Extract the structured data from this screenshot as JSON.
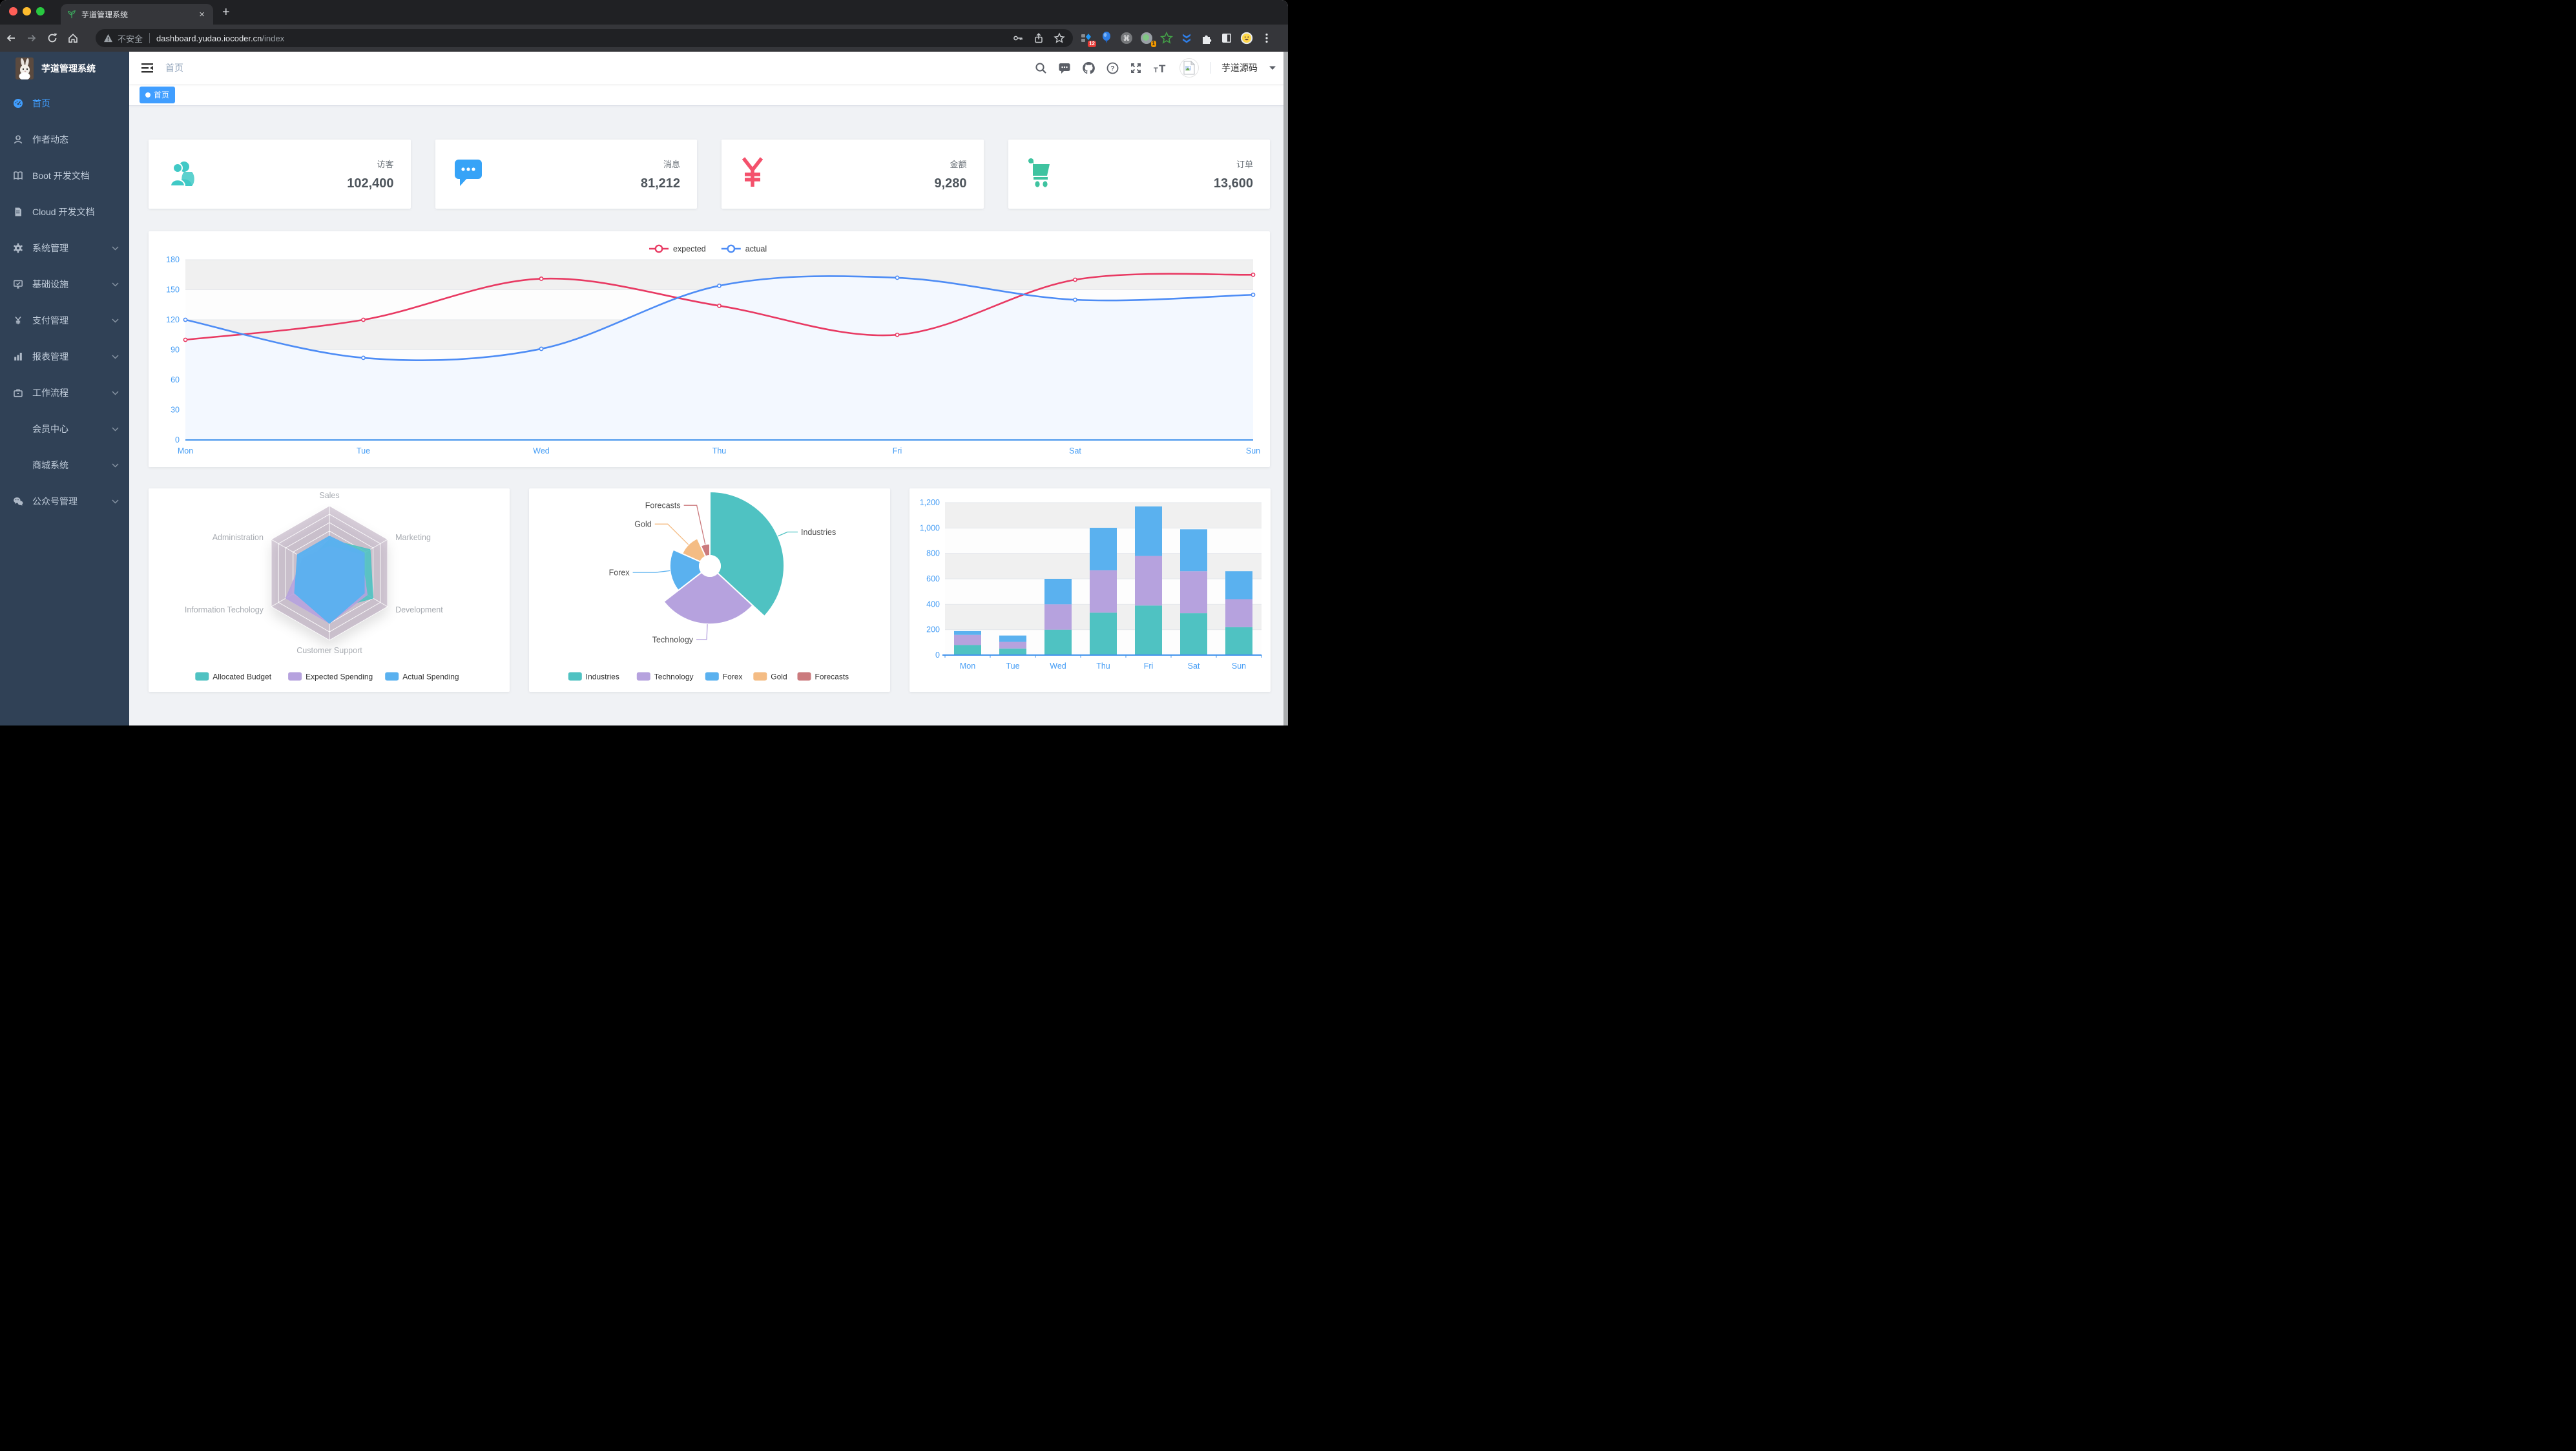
{
  "browser": {
    "tab_title": "芋道管理系统",
    "tab_close": "×",
    "security_label": "不安全",
    "url_host": "dashboard.yudao.iocoder.cn",
    "url_path": "/index",
    "ext_badge_scripts": "12",
    "ext_badge_circle": "1"
  },
  "sidebar": {
    "title": "芋道管理系统",
    "items": [
      {
        "label": "首页",
        "icon": "dashboard-icon",
        "active": true,
        "arrow": false,
        "indent": false
      },
      {
        "label": "作者动态",
        "icon": "people-icon",
        "active": false,
        "arrow": false,
        "indent": false
      },
      {
        "label": "Boot 开发文档",
        "icon": "book-icon",
        "active": false,
        "arrow": false,
        "indent": false
      },
      {
        "label": "Cloud 开发文档",
        "icon": "document-icon",
        "active": false,
        "arrow": false,
        "indent": false
      },
      {
        "label": "系统管理",
        "icon": "gear-icon",
        "active": false,
        "arrow": true,
        "indent": false
      },
      {
        "label": "基础设施",
        "icon": "monitor-icon",
        "active": false,
        "arrow": true,
        "indent": false
      },
      {
        "label": "支付管理",
        "icon": "yen-icon",
        "active": false,
        "arrow": true,
        "indent": false
      },
      {
        "label": "报表管理",
        "icon": "barchart-icon",
        "active": false,
        "arrow": true,
        "indent": false
      },
      {
        "label": "工作流程",
        "icon": "briefcase-icon",
        "active": false,
        "arrow": true,
        "indent": false
      },
      {
        "label": "会员中心",
        "icon": null,
        "active": false,
        "arrow": true,
        "indent": true
      },
      {
        "label": "商城系统",
        "icon": null,
        "active": false,
        "arrow": true,
        "indent": true
      },
      {
        "label": "公众号管理",
        "icon": "wechat-icon",
        "active": false,
        "arrow": true,
        "indent": false
      }
    ]
  },
  "header": {
    "breadcrumb": "首页",
    "user": "芋道源码"
  },
  "tags": [
    {
      "label": "首页",
      "active": true
    }
  ],
  "stats": [
    {
      "label": "访客",
      "value": "102,400",
      "icon": "people-group-icon",
      "color": "#40c9c6"
    },
    {
      "label": "消息",
      "value": "81,212",
      "icon": "message-icon",
      "color": "#36a3f7"
    },
    {
      "label": "金额",
      "value": "9,280",
      "icon": "money-icon",
      "color": "#f4516c"
    },
    {
      "label": "订单",
      "value": "13,600",
      "icon": "cart-icon",
      "color": "#3fc3a0"
    }
  ],
  "chart_data": {
    "line": {
      "type": "line",
      "x": [
        "Mon",
        "Tue",
        "Wed",
        "Thu",
        "Fri",
        "Sat",
        "Sun"
      ],
      "ylim": [
        0,
        180
      ],
      "yticks": [
        0,
        30,
        60,
        90,
        120,
        150,
        180
      ],
      "grid": true,
      "legend_position": "top",
      "series": [
        {
          "name": "expected",
          "color": "#e83962",
          "values": [
            100,
            120,
            161,
            134,
            105,
            160,
            165
          ]
        },
        {
          "name": "actual",
          "color": "#4d8cf5",
          "area": "#f3f8ff",
          "values": [
            120,
            82,
            91,
            154,
            162,
            140,
            145
          ]
        }
      ],
      "axis_label_color": "#459df5",
      "axis_line_color": "#4494ec"
    },
    "radar": {
      "type": "radar",
      "indicators": [
        {
          "name": "Sales",
          "max": 10000
        },
        {
          "name": "Administration",
          "max": 20000
        },
        {
          "name": "Information Techology",
          "max": 20000
        },
        {
          "name": "Customer Support",
          "max": 20000
        },
        {
          "name": "Development",
          "max": 20000
        },
        {
          "name": "Marketing",
          "max": 20000
        }
      ],
      "grid_fill": "rgba(127,95,132,0.3)",
      "series": [
        {
          "name": "Allocated Budget",
          "color": "#4fc2c2",
          "values": [
            5000,
            7000,
            12000,
            11000,
            15000,
            14000
          ]
        },
        {
          "name": "Expected Spending",
          "color": "#b6a2de",
          "values": [
            4000,
            9000,
            15000,
            15000,
            13000,
            11000
          ]
        },
        {
          "name": "Actual Spending",
          "color": "#5ab1ef",
          "values": [
            5500,
            11000,
            12000,
            15000,
            12000,
            12000
          ]
        }
      ],
      "legend_position": "bottom"
    },
    "pie": {
      "type": "pie",
      "rose": true,
      "items": [
        {
          "name": "Industries",
          "value": 320,
          "color": "#4fc2c2"
        },
        {
          "name": "Technology",
          "value": 240,
          "color": "#b6a2de"
        },
        {
          "name": "Forex",
          "value": 149,
          "color": "#5ab1ef"
        },
        {
          "name": "Gold",
          "value": 100,
          "color": "#f4bc84"
        },
        {
          "name": "Forecasts",
          "value": 59,
          "color": "#cb7a7d"
        }
      ],
      "legend_position": "bottom"
    },
    "bar": {
      "type": "bar",
      "stacked": true,
      "categories": [
        "Mon",
        "Tue",
        "Wed",
        "Thu",
        "Fri",
        "Sat",
        "Sun"
      ],
      "ylim": [
        0,
        1200
      ],
      "ytick_labels": [
        "0",
        "200",
        "400",
        "600",
        "800",
        "1,000",
        "1,200"
      ],
      "series": [
        {
          "color": "#4fc2c2",
          "values": [
            79,
            52,
            200,
            334,
            390,
            330,
            220
          ]
        },
        {
          "color": "#b6a2de",
          "values": [
            80,
            52,
            200,
            334,
            390,
            330,
            220
          ]
        },
        {
          "color": "#5ab1ef",
          "values": [
            30,
            50,
            200,
            334,
            390,
            330,
            220
          ]
        }
      ],
      "axis_label_color": "#459df5",
      "axis_line_color": "#4494ec"
    }
  }
}
